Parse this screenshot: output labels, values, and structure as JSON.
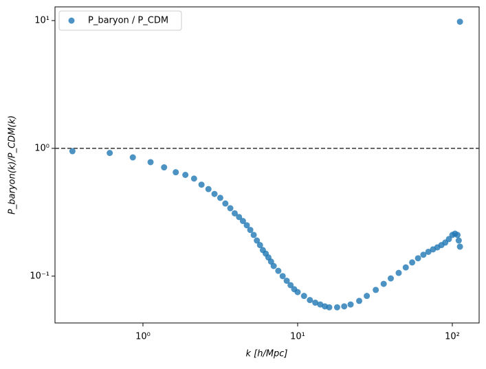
{
  "chart_data": {
    "type": "scatter",
    "xlabel": "k [h/Mpc]",
    "ylabel": "P_baryon(k)/P_CDM(k)",
    "xscale": "log",
    "yscale": "log",
    "xlim": [
      0.27,
      149
    ],
    "ylim": [
      0.043,
      12.8
    ],
    "xticks": [
      {
        "value": 1,
        "label": "10⁰"
      },
      {
        "value": 10,
        "label": "10¹"
      },
      {
        "value": 100,
        "label": "10²"
      }
    ],
    "yticks": [
      {
        "value": 0.1,
        "label": "10⁻¹"
      },
      {
        "value": 1,
        "label": "10⁰"
      },
      {
        "value": 10,
        "label": "10¹"
      }
    ],
    "hline": 1,
    "legend": "upper left",
    "series": [
      {
        "name": "P_baryon / P_CDM",
        "color": "#1f77b4",
        "x": [
          0.35,
          0.61,
          0.86,
          1.12,
          1.37,
          1.63,
          1.88,
          2.14,
          2.39,
          2.65,
          2.9,
          3.16,
          3.41,
          3.67,
          3.92,
          4.18,
          4.43,
          4.69,
          4.94,
          5.2,
          5.45,
          5.71,
          5.96,
          6.22,
          6.47,
          6.73,
          7,
          7.5,
          8,
          8.5,
          9,
          9.5,
          10,
          11,
          12,
          13,
          14,
          15,
          16,
          18,
          20,
          22,
          25,
          28,
          32,
          36,
          40,
          45,
          50,
          55,
          60,
          65,
          70,
          75,
          80,
          85,
          90,
          95,
          100,
          104,
          108,
          110,
          112,
          112
        ],
        "values": [
          0.95,
          0.92,
          0.85,
          0.78,
          0.71,
          0.65,
          0.62,
          0.58,
          0.52,
          0.48,
          0.44,
          0.41,
          0.37,
          0.34,
          0.31,
          0.29,
          0.27,
          0.25,
          0.23,
          0.21,
          0.19,
          0.175,
          0.16,
          0.15,
          0.14,
          0.13,
          0.12,
          0.11,
          0.1,
          0.092,
          0.085,
          0.079,
          0.075,
          0.07,
          0.065,
          0.062,
          0.06,
          0.058,
          0.057,
          0.057,
          0.058,
          0.06,
          0.064,
          0.07,
          0.078,
          0.087,
          0.096,
          0.106,
          0.117,
          0.128,
          0.138,
          0.147,
          0.155,
          0.162,
          0.168,
          0.175,
          0.183,
          0.195,
          0.21,
          0.215,
          0.21,
          0.19,
          0.17,
          9.8
        ]
      }
    ]
  }
}
